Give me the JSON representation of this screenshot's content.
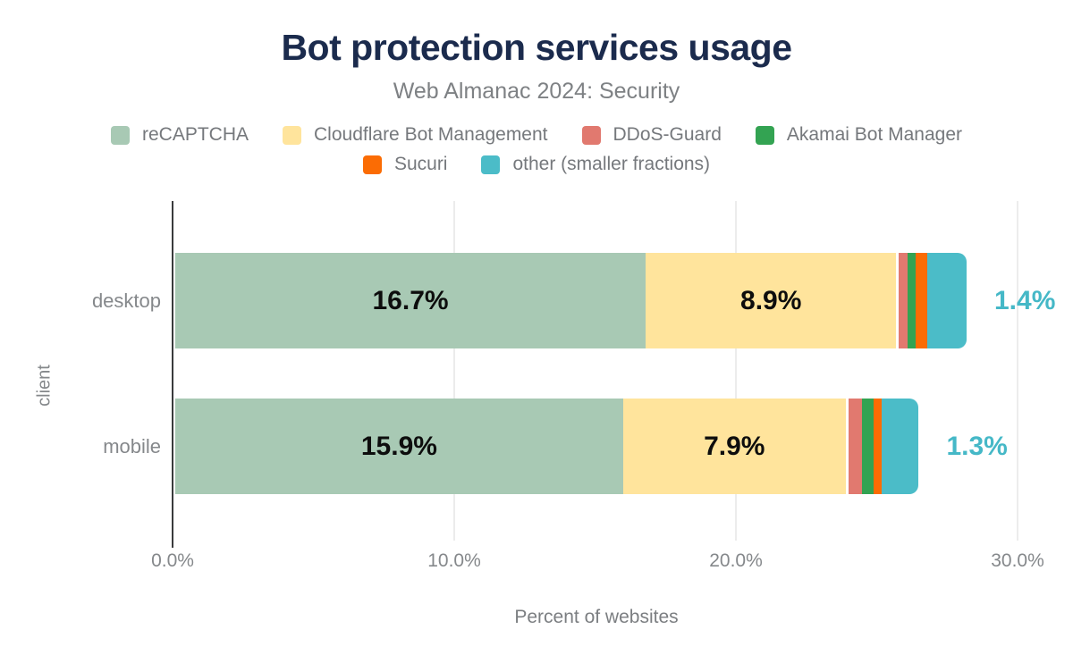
{
  "title": "Bot protection services usage",
  "subtitle": "Web Almanac 2024: Security",
  "colors": {
    "title_text": "#1b2b4d",
    "accent_teal_label": "#45b8c7"
  },
  "chart_data": {
    "type": "bar",
    "orientation": "horizontal",
    "stacked": true,
    "title": "Bot protection services usage",
    "subtitle": "Web Almanac 2024: Security",
    "xlabel": "Percent of websites",
    "ylabel": "client",
    "categories": [
      "desktop",
      "mobile"
    ],
    "series": [
      {
        "name": "reCAPTCHA",
        "color": "#a8c9b4",
        "values": [
          16.7,
          15.9
        ],
        "labels": [
          "16.7%",
          "15.9%"
        ],
        "label_position": "inside"
      },
      {
        "name": "Cloudflare Bot Management",
        "color": "#ffe49c",
        "values": [
          8.9,
          7.9
        ],
        "labels": [
          "8.9%",
          "7.9%"
        ],
        "label_position": "inside"
      },
      {
        "name": "DDoS-Guard",
        "color": "#e1796f",
        "values": [
          0.3,
          0.5
        ],
        "labels": [
          null,
          null
        ],
        "label_position": "none"
      },
      {
        "name": "Akamai Bot Manager",
        "color": "#33a352",
        "values": [
          0.3,
          0.4
        ],
        "labels": [
          null,
          null
        ],
        "label_position": "none"
      },
      {
        "name": "Sucuri",
        "color": "#fb6c04",
        "values": [
          0.4,
          0.3
        ],
        "labels": [
          null,
          null
        ],
        "label_position": "none"
      },
      {
        "name": "other (smaller fractions)",
        "color": "#4bbcc8",
        "values": [
          1.4,
          1.3
        ],
        "labels": [
          "1.4%",
          "1.3%"
        ],
        "label_position": "outside"
      }
    ],
    "x_ticks": [
      {
        "value": 0,
        "label": "0.0%"
      },
      {
        "value": 10,
        "label": "10.0%"
      },
      {
        "value": 20,
        "label": "20.0%"
      },
      {
        "value": 30,
        "label": "30.0%"
      }
    ],
    "xlim": [
      0,
      30
    ],
    "grid": "vertical",
    "legend_rows": [
      [
        0,
        1,
        2,
        3
      ],
      [
        4,
        5
      ]
    ],
    "legend_position": "top"
  }
}
